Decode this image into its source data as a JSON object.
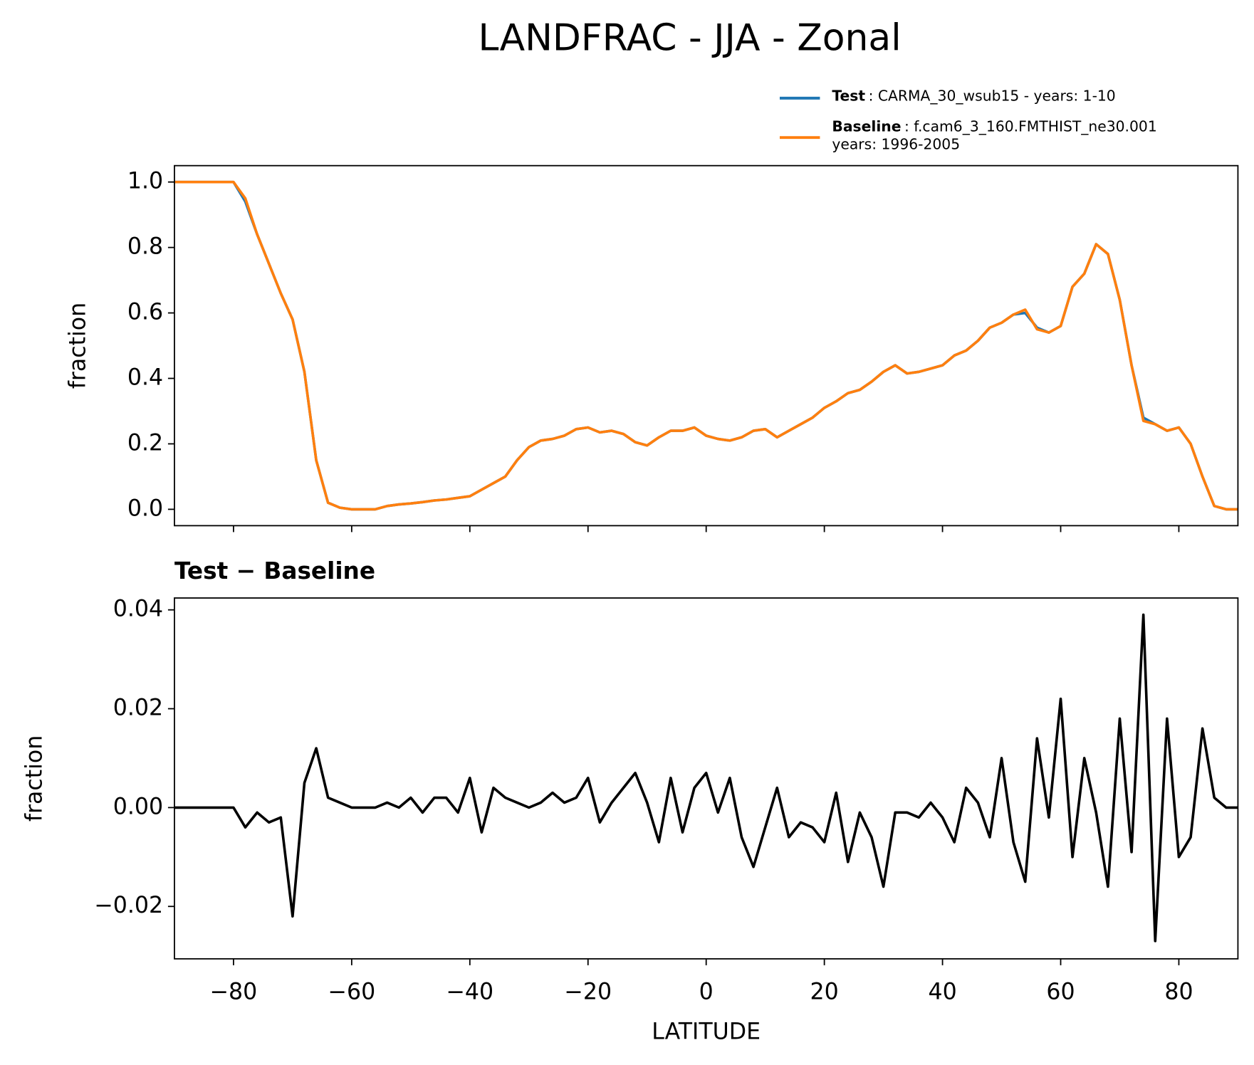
{
  "chart_data": [
    {
      "type": "line",
      "title": "LANDFRAC - JJA - Zonal",
      "ylabel": "fraction",
      "x": [
        -90,
        -88,
        -86,
        -84,
        -82,
        -80,
        -78,
        -76,
        -74,
        -72,
        -70,
        -68,
        -66,
        -64,
        -62,
        -60,
        -58,
        -56,
        -54,
        -52,
        -50,
        -48,
        -46,
        -44,
        -42,
        -40,
        -38,
        -36,
        -34,
        -32,
        -30,
        -28,
        -26,
        -24,
        -22,
        -20,
        -18,
        -16,
        -14,
        -12,
        -10,
        -8,
        -6,
        -4,
        -2,
        0,
        2,
        4,
        6,
        8,
        10,
        12,
        14,
        16,
        18,
        20,
        22,
        24,
        26,
        28,
        30,
        32,
        34,
        36,
        38,
        40,
        42,
        44,
        46,
        48,
        50,
        52,
        54,
        56,
        58,
        60,
        62,
        64,
        66,
        68,
        70,
        72,
        74,
        76,
        78,
        80,
        82,
        84,
        86,
        88,
        90
      ],
      "series": [
        {
          "name": "Test",
          "color": "#1f77b4",
          "legend_lines": [
            ": CARMA_30_wsub15 - years: 1-10"
          ],
          "values": [
            1,
            1,
            1,
            1,
            1,
            1,
            0.94,
            0.84,
            0.75,
            0.66,
            0.58,
            0.42,
            0.15,
            0.02,
            0.005,
            0,
            0,
            0,
            0.01,
            0.015,
            0.018,
            0.022,
            0.027,
            0.03,
            0.035,
            0.04,
            0.06,
            0.08,
            0.1,
            0.15,
            0.19,
            0.21,
            0.215,
            0.225,
            0.245,
            0.25,
            0.235,
            0.24,
            0.23,
            0.205,
            0.195,
            0.22,
            0.24,
            0.24,
            0.25,
            0.225,
            0.215,
            0.21,
            0.22,
            0.24,
            0.245,
            0.22,
            0.24,
            0.26,
            0.28,
            0.31,
            0.33,
            0.355,
            0.365,
            0.39,
            0.42,
            0.44,
            0.415,
            0.42,
            0.43,
            0.44,
            0.47,
            0.485,
            0.515,
            0.555,
            0.57,
            0.595,
            0.6,
            0.555,
            0.54,
            0.56,
            0.68,
            0.72,
            0.81,
            0.78,
            0.64,
            0.44,
            0.28,
            0.26,
            0.24,
            0.25,
            0.2,
            0.1,
            0.01,
            0,
            0
          ]
        },
        {
          "name": "Baseline",
          "color": "#ff7f0e",
          "legend_lines": [
            ": f.cam6_3_160.FMTHIST_ne30.001",
            "years: 1996-2005"
          ],
          "values": [
            1,
            1,
            1,
            1,
            1,
            1,
            0.95,
            0.84,
            0.75,
            0.66,
            0.58,
            0.42,
            0.15,
            0.02,
            0.005,
            0,
            0,
            0,
            0.01,
            0.015,
            0.018,
            0.022,
            0.027,
            0.03,
            0.035,
            0.04,
            0.06,
            0.08,
            0.1,
            0.15,
            0.19,
            0.21,
            0.215,
            0.225,
            0.245,
            0.25,
            0.235,
            0.24,
            0.23,
            0.205,
            0.195,
            0.22,
            0.24,
            0.24,
            0.25,
            0.225,
            0.215,
            0.21,
            0.22,
            0.24,
            0.245,
            0.22,
            0.24,
            0.26,
            0.28,
            0.31,
            0.33,
            0.355,
            0.365,
            0.39,
            0.42,
            0.44,
            0.415,
            0.42,
            0.43,
            0.44,
            0.47,
            0.485,
            0.515,
            0.555,
            0.57,
            0.595,
            0.61,
            0.55,
            0.54,
            0.56,
            0.68,
            0.72,
            0.81,
            0.78,
            0.64,
            0.44,
            0.27,
            0.26,
            0.24,
            0.25,
            0.2,
            0.1,
            0.01,
            0,
            0
          ]
        }
      ],
      "xlim": [
        -90,
        90
      ],
      "xticks": [
        -80,
        -60,
        -40,
        -20,
        0,
        20,
        40,
        60,
        80
      ],
      "ylim": [
        -0.05,
        1.05
      ],
      "yticks": [
        {
          "value": 0,
          "label": "0.0"
        },
        0.2,
        0.4,
        0.6,
        0.8,
        {
          "value": 1,
          "label": "1.0"
        }
      ]
    },
    {
      "type": "line",
      "title": "Test − Baseline",
      "xlabel": "LATITUDE",
      "ylabel": "fraction",
      "x": [
        -90,
        -88,
        -86,
        -84,
        -82,
        -80,
        -78,
        -76,
        -74,
        -72,
        -70,
        -68,
        -66,
        -64,
        -62,
        -60,
        -58,
        -56,
        -54,
        -52,
        -50,
        -48,
        -46,
        -44,
        -42,
        -40,
        -38,
        -36,
        -34,
        -32,
        -30,
        -28,
        -26,
        -24,
        -22,
        -20,
        -18,
        -16,
        -14,
        -12,
        -10,
        -8,
        -6,
        -4,
        -2,
        0,
        2,
        4,
        6,
        8,
        10,
        12,
        14,
        16,
        18,
        20,
        22,
        24,
        26,
        28,
        30,
        32,
        34,
        36,
        38,
        40,
        42,
        44,
        46,
        48,
        50,
        52,
        54,
        56,
        58,
        60,
        62,
        64,
        66,
        68,
        70,
        72,
        74,
        76,
        78,
        80,
        82,
        84,
        86,
        88,
        90
      ],
      "series": [
        {
          "color": "#000000",
          "values": [
            0,
            0,
            0,
            0,
            0,
            0,
            -0.004,
            -0.001,
            -0.003,
            -0.002,
            -0.022,
            0.005,
            0.012,
            0.002,
            0.001,
            0,
            0,
            0,
            0.001,
            0,
            0.002,
            -0.001,
            0.002,
            0.002,
            -0.001,
            0.006,
            -0.005,
            0.004,
            0.002,
            0.001,
            0,
            0.001,
            0.003,
            0.001,
            0.002,
            0.006,
            -0.003,
            0.001,
            0.004,
            0.007,
            0.001,
            -0.007,
            0.006,
            -0.005,
            0.004,
            0.007,
            -0.001,
            0.006,
            -0.006,
            -0.012,
            -0.004,
            0.004,
            -0.006,
            -0.003,
            -0.004,
            -0.007,
            0.003,
            -0.011,
            -0.001,
            -0.006,
            -0.016,
            -0.001,
            -0.001,
            -0.002,
            0.001,
            -0.002,
            -0.007,
            0.004,
            0.001,
            -0.006,
            0.01,
            -0.007,
            -0.015,
            0.014,
            -0.002,
            0.022,
            -0.01,
            0.01,
            -0.001,
            -0.016,
            0.018,
            -0.009,
            0.039,
            -0.027,
            0.018,
            -0.01,
            -0.006,
            0.016,
            0.002,
            0,
            0
          ]
        }
      ],
      "xlim": [
        -90,
        90
      ],
      "xticks": [
        {
          "value": -80,
          "label": "−80"
        },
        {
          "value": -60,
          "label": "−60"
        },
        {
          "value": -40,
          "label": "−40"
        },
        {
          "value": -20,
          "label": "−20"
        },
        0,
        20,
        40,
        60,
        80
      ],
      "ylim": [
        -0.0306,
        0.0424
      ],
      "yticks": [
        {
          "value": -0.02,
          "label": "−0.02"
        },
        {
          "value": 0,
          "label": "0.00"
        },
        0.02,
        0.04
      ]
    }
  ]
}
